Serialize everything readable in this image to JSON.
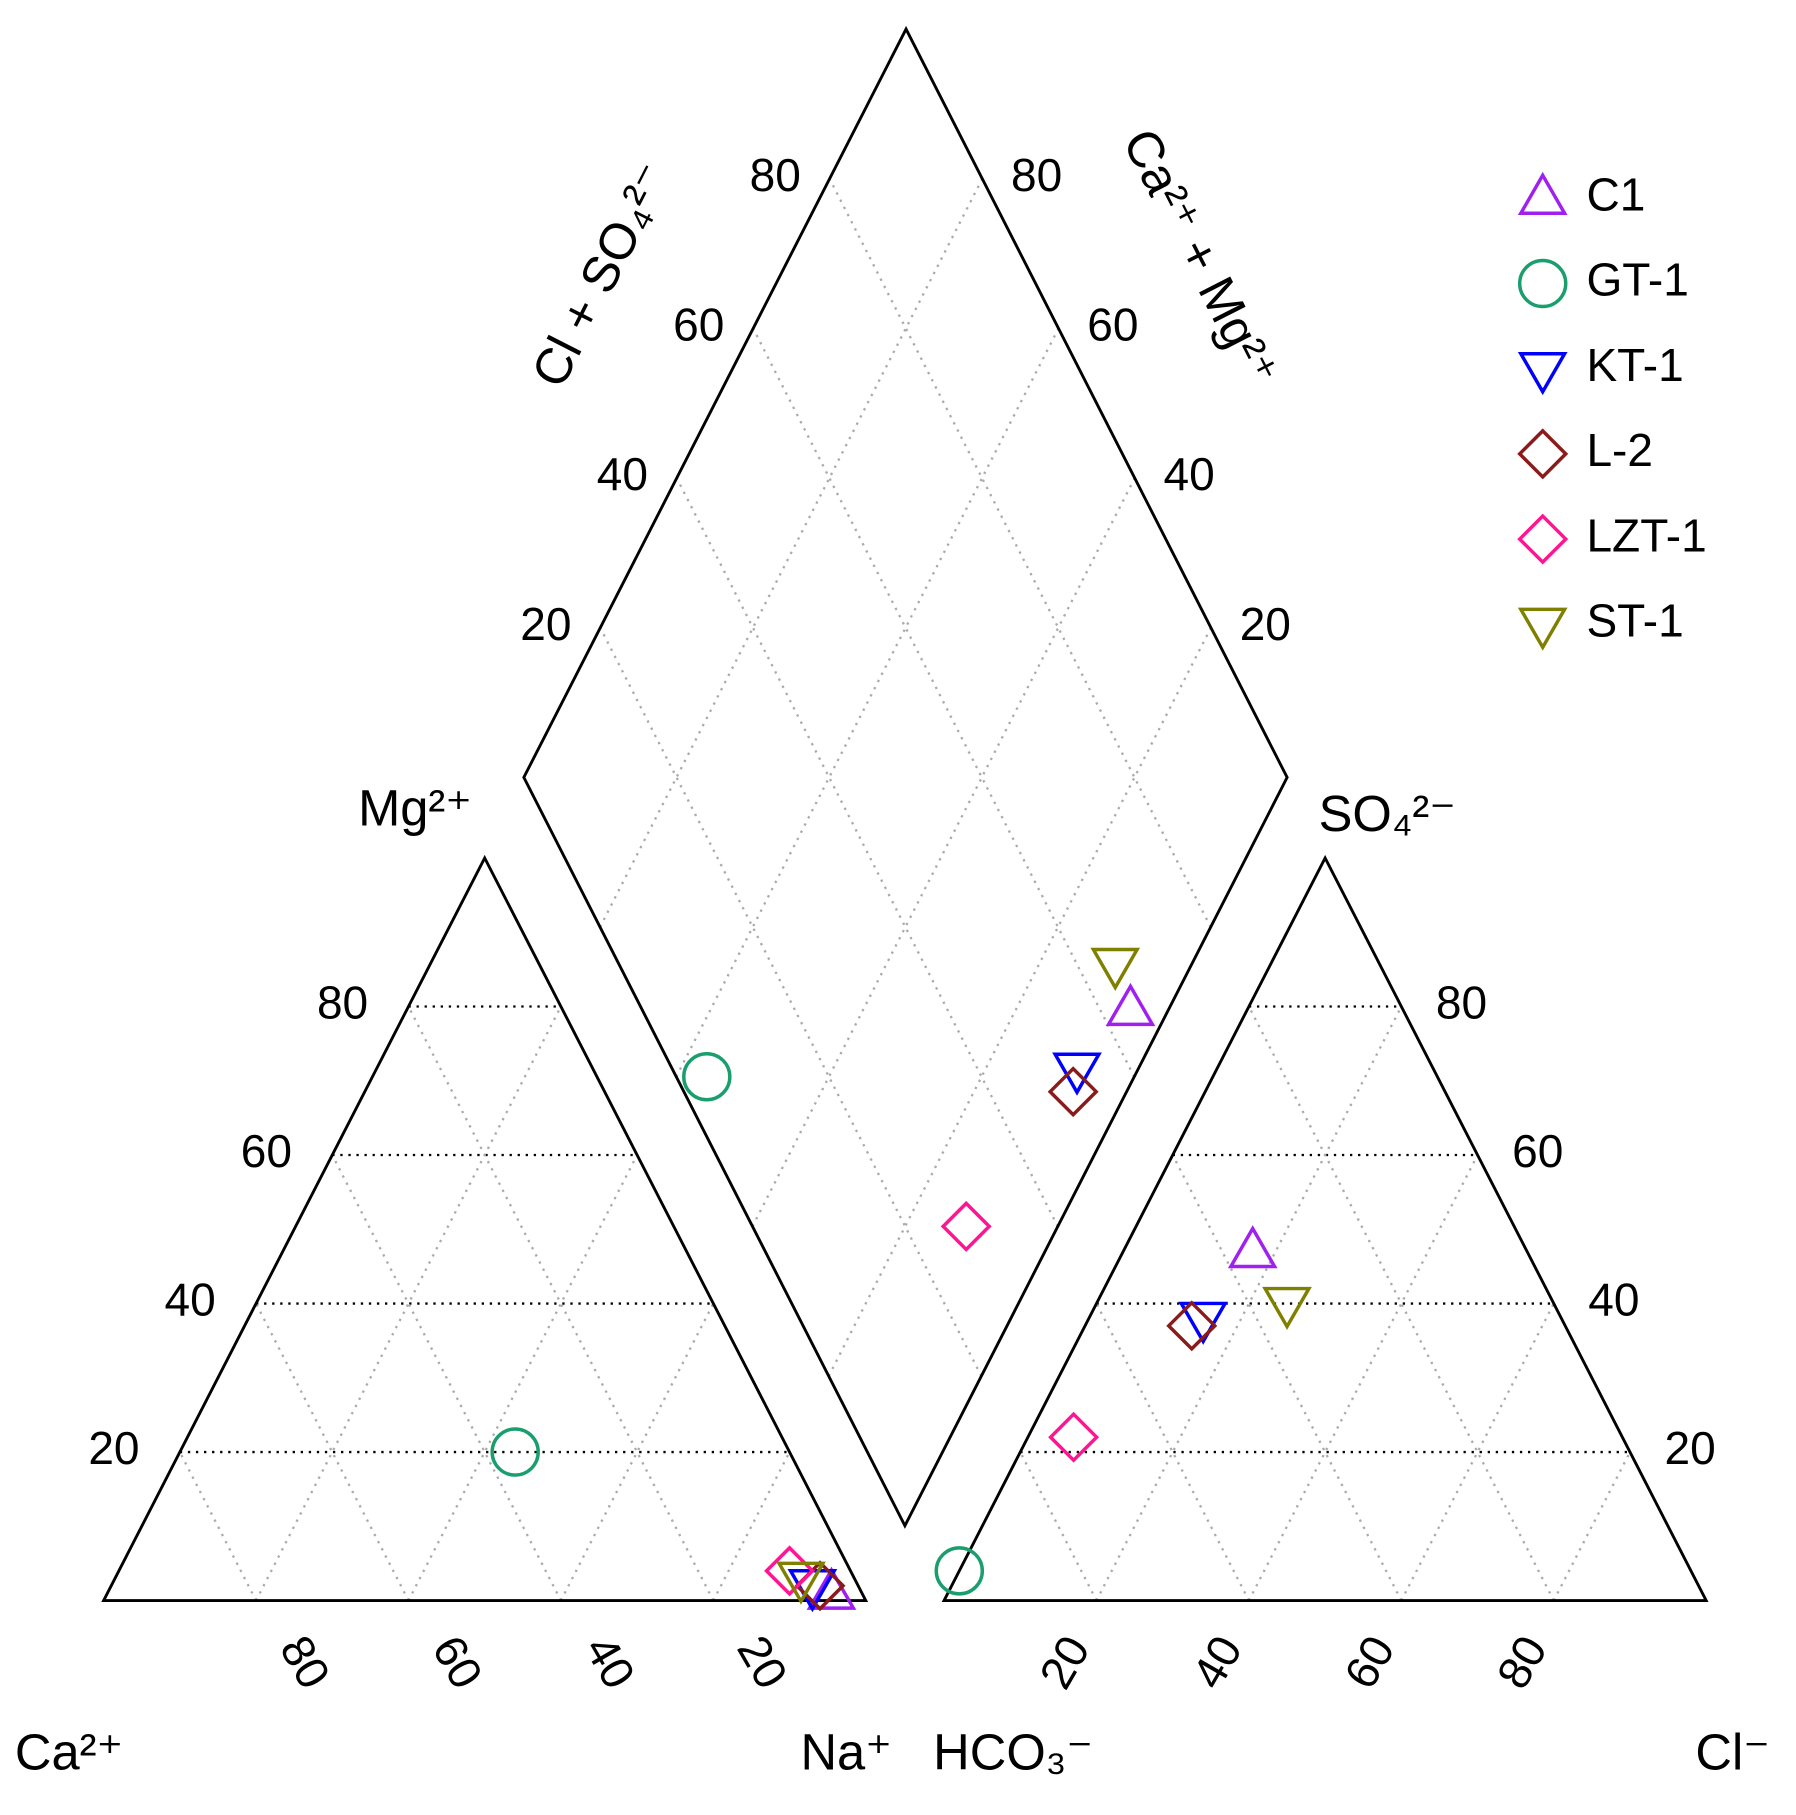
{
  "chart_data": {
    "type": "piper",
    "labels": {
      "mg": "Mg²⁺",
      "ca": "Ca²⁺",
      "na": "Na⁺",
      "hco3": "HCO₃⁻",
      "cl": "Cl⁻",
      "so4": "SO₄²⁻",
      "cl_so4": "Cl + SO₄²⁻",
      "ca_mg": "Ca²⁺ + Mg²⁺"
    },
    "mg_ticks": [
      20,
      40,
      60,
      80
    ],
    "ca_ticks": [
      80,
      60,
      40,
      20
    ],
    "so4_ticks": [
      20,
      40,
      60,
      80
    ],
    "cl_ticks": [
      20,
      40,
      60,
      80
    ],
    "cl_so4_ticks": [
      20,
      40,
      60,
      80
    ],
    "ca_mg_ticks": [
      20,
      40,
      60,
      80
    ],
    "series": [
      {
        "name": "C1",
        "color": "#a020f0",
        "marker": "triangle-up",
        "ca": 4,
        "mg": 1,
        "na": 95,
        "hco3": 36,
        "so4": 47,
        "cl": 17
      },
      {
        "name": "GT-1",
        "color": "#1a9e6e",
        "marker": "circle",
        "ca": 36,
        "mg": 20,
        "na": 44,
        "hco3": 96,
        "so4": 4,
        "cl": 0
      },
      {
        "name": "KT-1",
        "color": "#0000ff",
        "marker": "triangle-down",
        "ca": 6,
        "mg": 2,
        "na": 92,
        "hco3": 47,
        "so4": 38,
        "cl": 15
      },
      {
        "name": "L-2",
        "color": "#8b1a1a",
        "marker": "diamond",
        "ca": 5,
        "mg": 2,
        "na": 93,
        "hco3": 49,
        "so4": 37,
        "cl": 14
      },
      {
        "name": "LZT-1",
        "color": "#ff1493",
        "marker": "diamond",
        "ca": 8,
        "mg": 4,
        "na": 88,
        "hco3": 72,
        "so4": 22,
        "cl": 6
      },
      {
        "name": "ST-1",
        "color": "#808000",
        "marker": "triangle-down",
        "ca": 7,
        "mg": 3,
        "na": 90,
        "hco3": 35,
        "so4": 40,
        "cl": 25
      }
    ]
  }
}
